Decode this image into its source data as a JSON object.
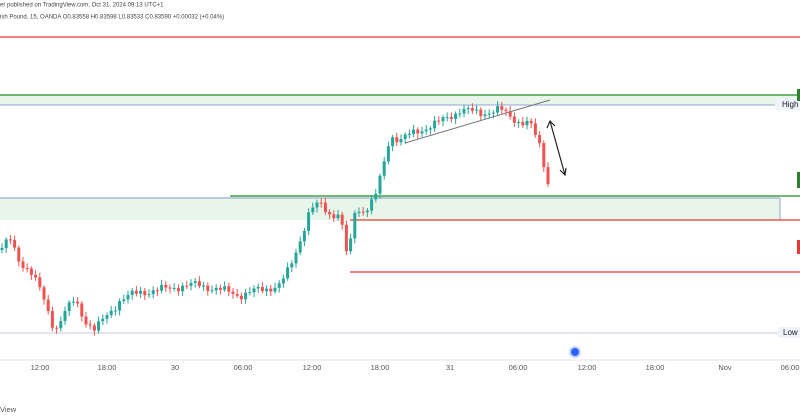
{
  "header": {
    "line1": "er published on TradingView.com, Oct 31, 2024 09:13 UTC+1",
    "line2": "ish Pound, 15, OANDA  O0.83558  H0.83598  L0.83533  C0.83590  +0.00032 (+0.04%)"
  },
  "price_labels": {
    "high": "High",
    "low": "Low"
  },
  "x_axis": {
    "labels": [
      "12:00",
      "18:00",
      "30",
      "06:00",
      "12:00",
      "18:00",
      "31",
      "06:00",
      "12:00",
      "18:00",
      "Nov",
      "06:00"
    ]
  },
  "footer": "View"
}
